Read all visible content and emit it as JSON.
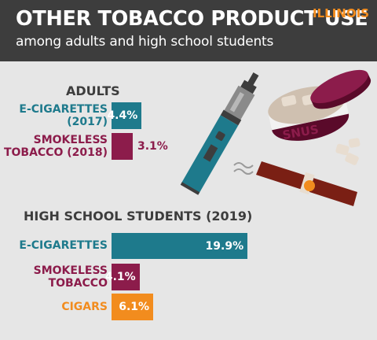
{
  "header": {
    "title": "OTHER TOBACCO PRODUCT USE",
    "subtitle": "among adults and high school students",
    "state": "ILLINOIS"
  },
  "illustration": {
    "snus_label": "SNUS"
  },
  "colors": {
    "teal": "#1e7a8c",
    "maroon": "#8c1c4b",
    "orange": "#f28c1e",
    "header_bg": "#3d3d3d",
    "page_bg": "#e6e6e6"
  },
  "chart_data": [
    {
      "type": "bar",
      "orientation": "horizontal",
      "title": "ADULTS",
      "unit": "%",
      "categories": [
        [
          "E-CIGARETTES",
          "(2017)"
        ],
        [
          "SMOKELESS",
          "TOBACCO (2018)"
        ]
      ],
      "values": [
        4.4,
        3.1
      ],
      "value_labels": [
        "4.4%",
        "3.1%"
      ],
      "colors": [
        "#1e7a8c",
        "#8c1c4b"
      ]
    },
    {
      "type": "bar",
      "orientation": "horizontal",
      "title": "HIGH SCHOOL STUDENTS (2019)",
      "unit": "%",
      "categories": [
        [
          "E-CIGARETTES"
        ],
        [
          "SMOKELESS",
          "TOBACCO"
        ],
        [
          "CIGARS"
        ]
      ],
      "values": [
        19.9,
        4.1,
        6.1
      ],
      "value_labels": [
        "19.9%",
        "4.1%",
        "6.1%"
      ],
      "colors": [
        "#1e7a8c",
        "#8c1c4b",
        "#f28c1e"
      ]
    }
  ]
}
